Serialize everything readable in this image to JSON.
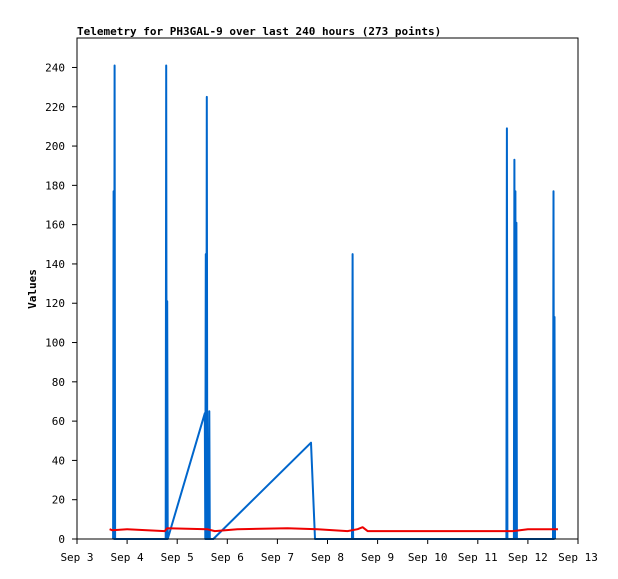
{
  "chart_data": {
    "type": "line",
    "title": "Telemetry for PH3GAL-9 over last 240 hours (273 points)",
    "xlabel": "",
    "ylabel": "Values",
    "xlim": [
      3,
      13
    ],
    "ylim": [
      0,
      255
    ],
    "x_tick_values": [
      3,
      4,
      5,
      6,
      7,
      8,
      9,
      10,
      11,
      12,
      13
    ],
    "x_ticks": [
      "Sep 3",
      "Sep 4",
      "Sep 5",
      "Sep 6",
      "Sep 7",
      "Sep 8",
      "Sep 9",
      "Sep 10",
      "Sep 11",
      "Sep 12",
      "Sep 13"
    ],
    "y_ticks": [
      0,
      20,
      40,
      60,
      80,
      100,
      120,
      140,
      160,
      180,
      200,
      220,
      240
    ],
    "grid": false,
    "series": [
      {
        "color": "#0066cc",
        "points": [
          [
            3.72,
            0
          ],
          [
            3.73,
            177
          ],
          [
            3.74,
            0
          ],
          [
            3.75,
            241
          ],
          [
            3.76,
            0
          ],
          [
            4.77,
            0
          ],
          [
            4.78,
            241
          ],
          [
            4.79,
            0
          ],
          [
            4.8,
            121
          ],
          [
            4.81,
            0
          ],
          [
            5.55,
            64
          ],
          [
            5.56,
            0
          ],
          [
            5.57,
            145
          ],
          [
            5.58,
            0
          ],
          [
            5.59,
            225
          ],
          [
            5.6,
            0
          ],
          [
            5.63,
            0
          ],
          [
            5.64,
            65
          ],
          [
            5.65,
            0
          ],
          [
            5.72,
            0
          ],
          [
            7.67,
            49
          ],
          [
            7.75,
            0
          ],
          [
            8.49,
            0
          ],
          [
            8.5,
            145
          ],
          [
            8.51,
            0
          ],
          [
            11.57,
            0
          ],
          [
            11.58,
            209
          ],
          [
            11.59,
            0
          ],
          [
            11.72,
            0
          ],
          [
            11.73,
            193
          ],
          [
            11.74,
            0
          ],
          [
            11.75,
            177
          ],
          [
            11.76,
            0
          ],
          [
            11.77,
            161
          ],
          [
            11.78,
            0
          ],
          [
            12.5,
            0
          ],
          [
            12.51,
            177
          ],
          [
            12.52,
            0
          ],
          [
            12.53,
            113
          ],
          [
            12.54,
            0
          ]
        ]
      },
      {
        "color": "#ee0000",
        "points": [
          [
            3.65,
            5
          ],
          [
            3.7,
            4.5
          ],
          [
            4.0,
            5
          ],
          [
            4.75,
            4
          ],
          [
            4.8,
            5.5
          ],
          [
            5.6,
            5
          ],
          [
            5.75,
            4
          ],
          [
            6.2,
            5
          ],
          [
            7.2,
            5.5
          ],
          [
            7.8,
            5
          ],
          [
            8.4,
            4
          ],
          [
            8.6,
            5
          ],
          [
            8.7,
            6
          ],
          [
            8.8,
            4
          ],
          [
            10.0,
            4
          ],
          [
            11.7,
            4
          ],
          [
            12.0,
            5
          ],
          [
            12.6,
            5
          ]
        ]
      }
    ]
  }
}
